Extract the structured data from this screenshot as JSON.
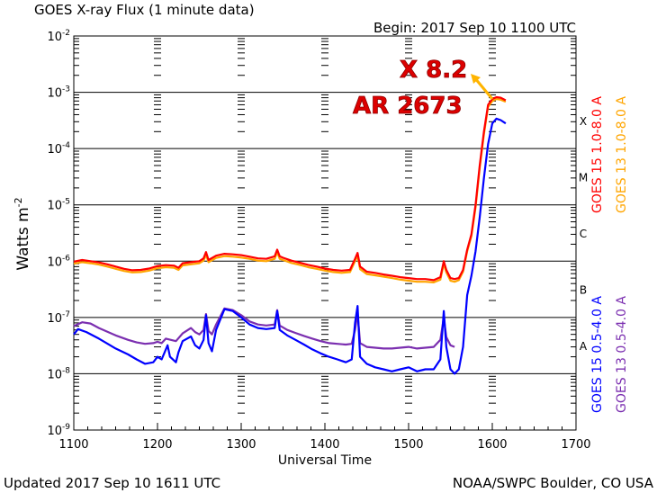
{
  "header": {
    "title": "GOES X-ray Flux (1 minute data)",
    "begin": "Begin: 2017 Sep 10 1100 UTC"
  },
  "footer": {
    "updated": "Updated 2017 Sep 10 1611 UTC",
    "credit": "NOAA/SWPC Boulder, CO USA"
  },
  "annotation": {
    "flare": "X 8.2",
    "region": "AR 2673",
    "arrow_color": "#ffb400"
  },
  "chart_data": {
    "type": "line",
    "title": "GOES X-ray Flux (1 minute data)",
    "xlabel": "Universal Time",
    "ylabel": "Watts m",
    "ylabel_exp": "-2",
    "y_scale": "log",
    "ylim": [
      1e-09,
      0.01
    ],
    "xlim": [
      1100,
      1700
    ],
    "x_ticks": [
      "1100",
      "1200",
      "1300",
      "1400",
      "1500",
      "1600",
      "1700"
    ],
    "y_ticks": [
      {
        "base": "10",
        "exp": "-2"
      },
      {
        "base": "10",
        "exp": "-3"
      },
      {
        "base": "10",
        "exp": "-4"
      },
      {
        "base": "10",
        "exp": "-5"
      },
      {
        "base": "10",
        "exp": "-6"
      },
      {
        "base": "10",
        "exp": "-7"
      },
      {
        "base": "10",
        "exp": "-8"
      },
      {
        "base": "10",
        "exp": "-9"
      }
    ],
    "flare_classes": [
      {
        "label": "X",
        "flux": 0.0001
      },
      {
        "label": "M",
        "flux": 1e-05
      },
      {
        "label": "C",
        "flux": 1e-06
      },
      {
        "label": "B",
        "flux": 1e-07
      },
      {
        "label": "A",
        "flux": 1e-08
      }
    ],
    "series": [
      {
        "name": "GOES 15 1.0-8.0 A",
        "color": "#ff0000",
        "values": [
          [
            1100,
            9.8e-07
          ],
          [
            1110,
            1.05e-06
          ],
          [
            1120,
            1e-06
          ],
          [
            1130,
            9.5e-07
          ],
          [
            1140,
            8.8e-07
          ],
          [
            1150,
            8e-07
          ],
          [
            1160,
            7.3e-07
          ],
          [
            1170,
            6.9e-07
          ],
          [
            1180,
            7e-07
          ],
          [
            1190,
            7.4e-07
          ],
          [
            1200,
            8.2e-07
          ],
          [
            1210,
            8.5e-07
          ],
          [
            1220,
            8.3e-07
          ],
          [
            1225,
            7.6e-07
          ],
          [
            1230,
            9.2e-07
          ],
          [
            1240,
            9.6e-07
          ],
          [
            1250,
            1e-06
          ],
          [
            1255,
            1.12e-06
          ],
          [
            1258,
            1.45e-06
          ],
          [
            1261,
            1.05e-06
          ],
          [
            1270,
            1.25e-06
          ],
          [
            1280,
            1.35e-06
          ],
          [
            1290,
            1.32e-06
          ],
          [
            1300,
            1.28e-06
          ],
          [
            1310,
            1.2e-06
          ],
          [
            1320,
            1.12e-06
          ],
          [
            1330,
            1.1e-06
          ],
          [
            1340,
            1.22e-06
          ],
          [
            1343,
            1.6e-06
          ],
          [
            1346,
            1.22e-06
          ],
          [
            1350,
            1.15e-06
          ],
          [
            1360,
            1.02e-06
          ],
          [
            1370,
            9.4e-07
          ],
          [
            1380,
            8.6e-07
          ],
          [
            1390,
            8e-07
          ],
          [
            1400,
            7.4e-07
          ],
          [
            1410,
            7e-07
          ],
          [
            1420,
            6.8e-07
          ],
          [
            1430,
            7e-07
          ],
          [
            1436,
            1.1e-06
          ],
          [
            1439,
            1.4e-06
          ],
          [
            1442,
            8e-07
          ],
          [
            1450,
            6.5e-07
          ],
          [
            1460,
            6.2e-07
          ],
          [
            1470,
            5.8e-07
          ],
          [
            1480,
            5.5e-07
          ],
          [
            1490,
            5.2e-07
          ],
          [
            1500,
            5e-07
          ],
          [
            1510,
            4.8e-07
          ],
          [
            1520,
            4.8e-07
          ],
          [
            1530,
            4.6e-07
          ],
          [
            1538,
            5.2e-07
          ],
          [
            1542,
            1e-06
          ],
          [
            1545,
            7e-07
          ],
          [
            1550,
            5e-07
          ],
          [
            1555,
            4.8e-07
          ],
          [
            1560,
            5e-07
          ],
          [
            1565,
            7e-07
          ],
          [
            1570,
            1.6e-06
          ],
          [
            1575,
            3e-06
          ],
          [
            1580,
            1e-05
          ],
          [
            1585,
            5e-05
          ],
          [
            1590,
            0.0002
          ],
          [
            1595,
            0.0006
          ],
          [
            1600,
            0.00076
          ],
          [
            1605,
            0.00082
          ],
          [
            1610,
            0.0008
          ],
          [
            1616,
            0.00072
          ]
        ]
      },
      {
        "name": "GOES 13 1.0-8.0 A",
        "color": "#ffa500",
        "values": [
          [
            1100,
            9e-07
          ],
          [
            1110,
            9.6e-07
          ],
          [
            1120,
            9.2e-07
          ],
          [
            1130,
            8.7e-07
          ],
          [
            1140,
            8e-07
          ],
          [
            1150,
            7.3e-07
          ],
          [
            1160,
            6.7e-07
          ],
          [
            1170,
            6.3e-07
          ],
          [
            1180,
            6.4e-07
          ],
          [
            1190,
            6.8e-07
          ],
          [
            1200,
            7.5e-07
          ],
          [
            1210,
            7.8e-07
          ],
          [
            1220,
            7.6e-07
          ],
          [
            1225,
            7e-07
          ],
          [
            1230,
            8.4e-07
          ],
          [
            1240,
            8.8e-07
          ],
          [
            1250,
            9.2e-07
          ],
          [
            1255,
            1.02e-06
          ],
          [
            1258,
            1.3e-06
          ],
          [
            1261,
            9.6e-07
          ],
          [
            1270,
            1.14e-06
          ],
          [
            1280,
            1.23e-06
          ],
          [
            1290,
            1.2e-06
          ],
          [
            1300,
            1.16e-06
          ],
          [
            1310,
            1.1e-06
          ],
          [
            1320,
            1.02e-06
          ],
          [
            1330,
            1e-06
          ],
          [
            1340,
            1.1e-06
          ],
          [
            1343,
            1.45e-06
          ],
          [
            1346,
            1.1e-06
          ],
          [
            1350,
            1.05e-06
          ],
          [
            1360,
            9.3e-07
          ],
          [
            1370,
            8.6e-07
          ],
          [
            1380,
            7.8e-07
          ],
          [
            1390,
            7.3e-07
          ],
          [
            1400,
            6.8e-07
          ],
          [
            1410,
            6.4e-07
          ],
          [
            1420,
            6.2e-07
          ],
          [
            1430,
            6.4e-07
          ],
          [
            1436,
            1e-06
          ],
          [
            1439,
            1.25e-06
          ],
          [
            1442,
            7.2e-07
          ],
          [
            1450,
            5.9e-07
          ],
          [
            1460,
            5.6e-07
          ],
          [
            1470,
            5.3e-07
          ],
          [
            1480,
            5e-07
          ],
          [
            1490,
            4.7e-07
          ],
          [
            1500,
            4.5e-07
          ],
          [
            1510,
            4.3e-07
          ],
          [
            1520,
            4.3e-07
          ],
          [
            1530,
            4.2e-07
          ],
          [
            1538,
            4.7e-07
          ],
          [
            1542,
            9e-07
          ],
          [
            1545,
            6.3e-07
          ],
          [
            1550,
            4.5e-07
          ],
          [
            1555,
            4.3e-07
          ],
          [
            1560,
            4.6e-07
          ],
          [
            1565,
            6.5e-07
          ],
          [
            1570,
            1.5e-06
          ],
          [
            1575,
            2.8e-06
          ],
          [
            1580,
            9e-06
          ],
          [
            1585,
            4.5e-05
          ],
          [
            1590,
            0.00018
          ],
          [
            1595,
            0.00055
          ],
          [
            1600,
            0.0007
          ],
          [
            1605,
            0.00076
          ],
          [
            1610,
            0.00074
          ],
          [
            1616,
            0.00068
          ]
        ]
      },
      {
        "name": "GOES 15 0.5-4.0 A",
        "color": "#0000ff",
        "values": [
          [
            1100,
            5e-08
          ],
          [
            1105,
            6.2e-08
          ],
          [
            1115,
            5.5e-08
          ],
          [
            1130,
            4.2e-08
          ],
          [
            1150,
            2.8e-08
          ],
          [
            1165,
            2.2e-08
          ],
          [
            1175,
            1.8e-08
          ],
          [
            1185,
            1.5e-08
          ],
          [
            1195,
            1.6e-08
          ],
          [
            1200,
            2e-08
          ],
          [
            1205,
            1.8e-08
          ],
          [
            1212,
            3.2e-08
          ],
          [
            1215,
            2e-08
          ],
          [
            1222,
            1.6e-08
          ],
          [
            1225,
            2.4e-08
          ],
          [
            1230,
            3.8e-08
          ],
          [
            1240,
            4.6e-08
          ],
          [
            1245,
            3.2e-08
          ],
          [
            1250,
            2.8e-08
          ],
          [
            1255,
            4e-08
          ],
          [
            1258,
            1.1e-07
          ],
          [
            1261,
            3.5e-08
          ],
          [
            1265,
            2.5e-08
          ],
          [
            1270,
            6e-08
          ],
          [
            1280,
            1.4e-07
          ],
          [
            1290,
            1.3e-07
          ],
          [
            1300,
            1e-07
          ],
          [
            1310,
            7.5e-08
          ],
          [
            1320,
            6.5e-08
          ],
          [
            1330,
            6.2e-08
          ],
          [
            1340,
            6.5e-08
          ],
          [
            1343,
            1.3e-07
          ],
          [
            1346,
            6e-08
          ],
          [
            1355,
            4.8e-08
          ],
          [
            1365,
            4e-08
          ],
          [
            1375,
            3.3e-08
          ],
          [
            1385,
            2.7e-08
          ],
          [
            1395,
            2.3e-08
          ],
          [
            1405,
            2e-08
          ],
          [
            1415,
            1.8e-08
          ],
          [
            1425,
            1.6e-08
          ],
          [
            1432,
            1.8e-08
          ],
          [
            1436,
            8e-08
          ],
          [
            1439,
            1.6e-07
          ],
          [
            1442,
            2e-08
          ],
          [
            1450,
            1.5e-08
          ],
          [
            1460,
            1.3e-08
          ],
          [
            1470,
            1.2e-08
          ],
          [
            1480,
            1.1e-08
          ],
          [
            1490,
            1.2e-08
          ],
          [
            1500,
            1.3e-08
          ],
          [
            1510,
            1.1e-08
          ],
          [
            1520,
            1.2e-08
          ],
          [
            1530,
            1.2e-08
          ],
          [
            1538,
            1.8e-08
          ],
          [
            1542,
            1.3e-07
          ],
          [
            1545,
            3e-08
          ],
          [
            1550,
            1.2e-08
          ],
          [
            1555,
            1e-08
          ],
          [
            1560,
            1.2e-08
          ],
          [
            1565,
            3e-08
          ],
          [
            1570,
            2.5e-07
          ],
          [
            1575,
            5.5e-07
          ],
          [
            1580,
            1.5e-06
          ],
          [
            1585,
            6e-06
          ],
          [
            1590,
            3e-05
          ],
          [
            1595,
            0.00012
          ],
          [
            1600,
            0.00028
          ],
          [
            1605,
            0.00034
          ],
          [
            1610,
            0.00032
          ],
          [
            1616,
            0.00028
          ]
        ]
      },
      {
        "name": "GOES 13 0.5-4.0 A",
        "color": "#7b2fb0",
        "values": [
          [
            1100,
            7e-08
          ],
          [
            1110,
            8.2e-08
          ],
          [
            1120,
            7.8e-08
          ],
          [
            1130,
            6.5e-08
          ],
          [
            1150,
            4.8e-08
          ],
          [
            1165,
            4e-08
          ],
          [
            1175,
            3.6e-08
          ],
          [
            1185,
            3.4e-08
          ],
          [
            1195,
            3.5e-08
          ],
          [
            1200,
            3.7e-08
          ],
          [
            1205,
            3.5e-08
          ],
          [
            1210,
            4.2e-08
          ],
          [
            1222,
            3.8e-08
          ],
          [
            1230,
            5.2e-08
          ],
          [
            1240,
            6.5e-08
          ],
          [
            1245,
            5.5e-08
          ],
          [
            1250,
            5e-08
          ],
          [
            1255,
            6e-08
          ],
          [
            1258,
            1.15e-07
          ],
          [
            1261,
            5.8e-08
          ],
          [
            1265,
            5e-08
          ],
          [
            1270,
            7.5e-08
          ],
          [
            1280,
            1.45e-07
          ],
          [
            1290,
            1.35e-07
          ],
          [
            1300,
            1.1e-07
          ],
          [
            1310,
            8.5e-08
          ],
          [
            1320,
            7.5e-08
          ],
          [
            1330,
            7.2e-08
          ],
          [
            1340,
            7.5e-08
          ],
          [
            1343,
            1.35e-07
          ],
          [
            1346,
            7.2e-08
          ],
          [
            1355,
            6e-08
          ],
          [
            1365,
            5.3e-08
          ],
          [
            1375,
            4.7e-08
          ],
          [
            1385,
            4.2e-08
          ],
          [
            1395,
            3.8e-08
          ],
          [
            1405,
            3.5e-08
          ],
          [
            1415,
            3.4e-08
          ],
          [
            1425,
            3.3e-08
          ],
          [
            1432,
            3.4e-08
          ],
          [
            1436,
            6e-08
          ],
          [
            1439,
            1.2e-07
          ],
          [
            1442,
            3.5e-08
          ],
          [
            1450,
            3e-08
          ],
          [
            1460,
            2.9e-08
          ],
          [
            1470,
            2.8e-08
          ],
          [
            1480,
            2.8e-08
          ],
          [
            1490,
            2.9e-08
          ],
          [
            1500,
            3e-08
          ],
          [
            1510,
            2.8e-08
          ],
          [
            1520,
            2.9e-08
          ],
          [
            1530,
            3e-08
          ],
          [
            1538,
            4e-08
          ],
          [
            1542,
            1e-07
          ],
          [
            1545,
            4.5e-08
          ],
          [
            1550,
            3.2e-08
          ],
          [
            1555,
            3e-08
          ]
        ]
      }
    ],
    "legend_placement": "right-vertical",
    "grid": true
  }
}
